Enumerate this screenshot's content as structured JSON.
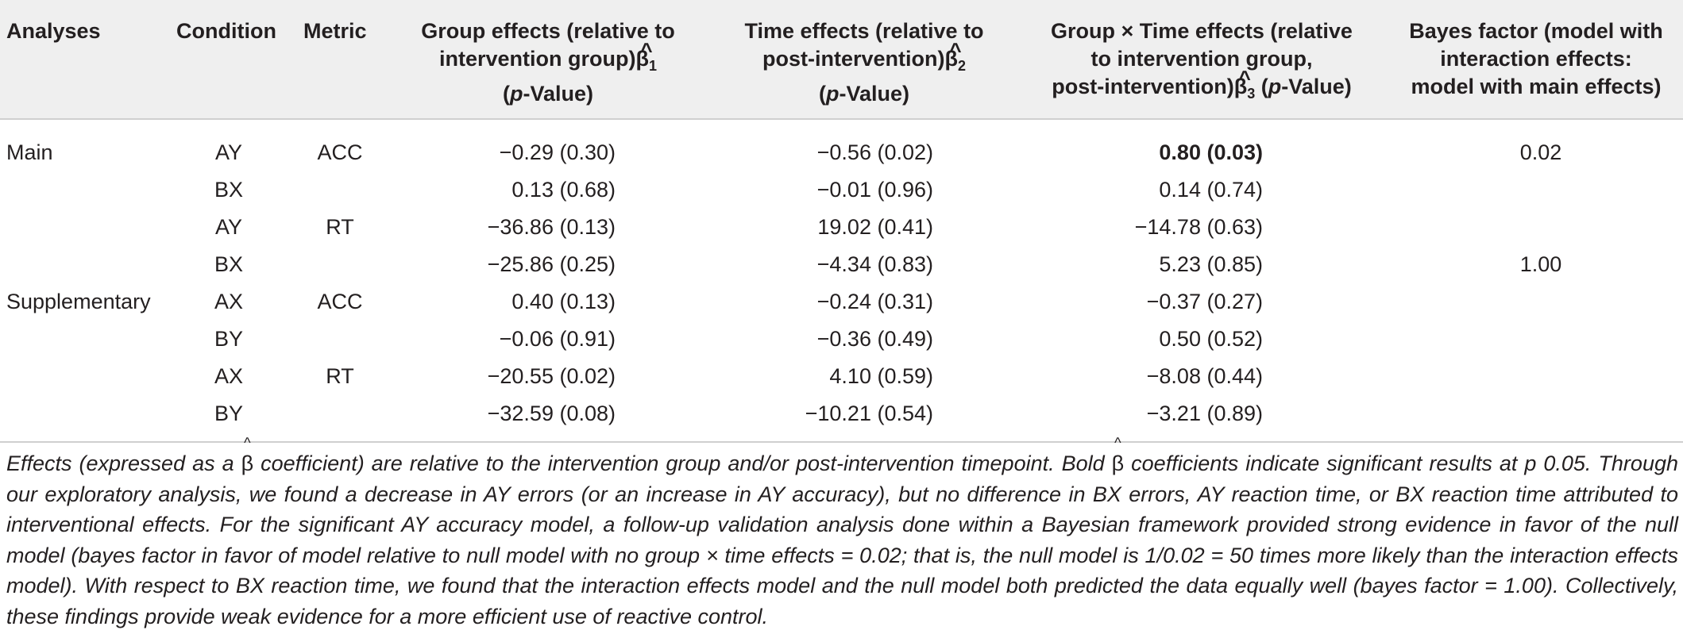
{
  "table": {
    "headers": {
      "analyses": "Analyses",
      "condition": "Condition",
      "metric": "Metric",
      "group_effects": {
        "line1": "Group effects (relative to",
        "line2": "intervention group)",
        "beta": "β",
        "sub": "1",
        "line3_pre": "(",
        "line3_p": "p",
        "line3_post": "-Value)"
      },
      "time_effects": {
        "line1": "Time effects (relative to",
        "line2": "post-intervention)",
        "beta": "β",
        "sub": "2",
        "line3_pre": "(",
        "line3_p": "p",
        "line3_post": "-Value)"
      },
      "interaction_effects": {
        "line1": "Group × Time effects (relative",
        "line2": "to intervention group,",
        "line3": "post-intervention)",
        "beta": "β",
        "sub": "3",
        "line3_tail_pre": " (",
        "line3_p": "p",
        "line3_tail_post": "-Value)"
      },
      "bayes_factor": {
        "line1": "Bayes factor (model with",
        "line2": "interaction effects:",
        "line3": "model with main effects)"
      }
    },
    "rows": [
      {
        "analysis": "Main",
        "condition": "AY",
        "metric": "ACC",
        "group": "−0.29 (0.30)",
        "time": "−0.56 (0.02)",
        "interaction": "0.80 (0.03)",
        "bayes": "0.02"
      },
      {
        "analysis": "",
        "condition": "BX",
        "metric": "",
        "group": "0.13 (0.68)",
        "time": "−0.01 (0.96)",
        "interaction": "0.14 (0.74)",
        "bayes": ""
      },
      {
        "analysis": "",
        "condition": "AY",
        "metric": "RT",
        "group": "−36.86 (0.13)",
        "time": "19.02 (0.41)",
        "interaction": "−14.78 (0.63)",
        "bayes": ""
      },
      {
        "analysis": "",
        "condition": "BX",
        "metric": "",
        "group": "−25.86 (0.25)",
        "time": "−4.34 (0.83)",
        "interaction": "5.23 (0.85)",
        "bayes": "1.00"
      },
      {
        "analysis": "Supplementary",
        "condition": "AX",
        "metric": "ACC",
        "group": "0.40 (0.13)",
        "time": "−0.24 (0.31)",
        "interaction": "−0.37 (0.27)",
        "bayes": ""
      },
      {
        "analysis": "",
        "condition": "BY",
        "metric": "",
        "group": "−0.06 (0.91)",
        "time": "−0.36 (0.49)",
        "interaction": "0.50 (0.52)",
        "bayes": ""
      },
      {
        "analysis": "",
        "condition": "AX",
        "metric": "RT",
        "group": "−20.55 (0.02)",
        "time": "4.10 (0.59)",
        "interaction": "−8.08 (0.44)",
        "bayes": ""
      },
      {
        "analysis": "",
        "condition": "BY",
        "metric": "",
        "group": "−32.59 (0.08)",
        "time": "−10.21 (0.54)",
        "interaction": "−3.21 (0.89)",
        "bayes": ""
      }
    ]
  },
  "footnote": {
    "s1_a": "Effects (expressed as a ",
    "beta": "β",
    "s1_b": " coefficient) are relative to the intervention group and/or post-intervention timepoint. Bold ",
    "s1_c": " coefficients indicate significant results at p   0.05.",
    "rest": "Through our exploratory analysis, we found a decrease in AY errors (or an increase in AY accuracy), but no difference in BX errors, AY reaction time, or BX reaction time attributed to interventional effects. For the significant AY accuracy model, a follow-up validation analysis done within a Bayesian framework provided strong evidence in favor of the null model (bayes factor in favor of model relative to null model with no group × time effects = 0.02; that is, the null model is 1/0.02 = 50 times more likely than the interaction effects model). With respect to BX reaction time, we found that the interaction effects model and the null model both predicted the data equally well (bayes factor = 1.00). Collectively, these findings provide weak evidence for a more efficient use of reactive control."
  }
}
